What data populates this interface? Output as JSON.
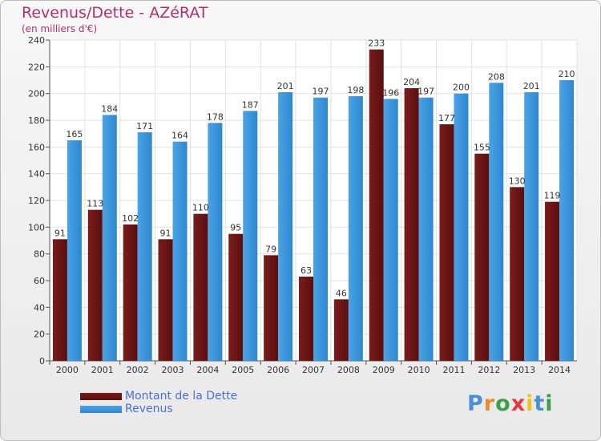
{
  "colors": {
    "dette": "#7a1c1c",
    "dette_dark": "#5a0f0f",
    "revenus": "#4aa3e6",
    "revenus_dark": "#2f88cf",
    "title": "#b0306a",
    "legend_text": "#4d6fd0"
  },
  "chart_data": {
    "type": "bar",
    "title": "Revenus/Dette - AZéRAT",
    "subtitle": "(en milliers d'€)",
    "xlabel": "",
    "ylabel": "",
    "ylim": [
      0,
      240
    ],
    "yticks": [
      0,
      20,
      40,
      60,
      80,
      100,
      120,
      140,
      160,
      180,
      200,
      220,
      240
    ],
    "grid": true,
    "categories": [
      "2000",
      "2001",
      "2002",
      "2003",
      "2004",
      "2005",
      "2006",
      "2007",
      "2008",
      "2009",
      "2010",
      "2011",
      "2012",
      "2013",
      "2014"
    ],
    "series": [
      {
        "name": "Montant de la Dette",
        "values": [
          91,
          113,
          102,
          91,
          110,
          95,
          79,
          63,
          46,
          233,
          204,
          177,
          155,
          130,
          119
        ]
      },
      {
        "name": "Revenus",
        "values": [
          165,
          184,
          171,
          164,
          178,
          187,
          201,
          197,
          198,
          196,
          197,
          200,
          208,
          201,
          210
        ]
      }
    ]
  },
  "logo": {
    "letters": [
      "P",
      "r",
      "o",
      "x",
      "i",
      "t",
      "i"
    ],
    "colors": [
      "#4a90d9",
      "#f08a24",
      "#3aa14a",
      "#e23b3b",
      "#f0c419",
      "#4a90d9",
      "#3aa14a"
    ]
  }
}
